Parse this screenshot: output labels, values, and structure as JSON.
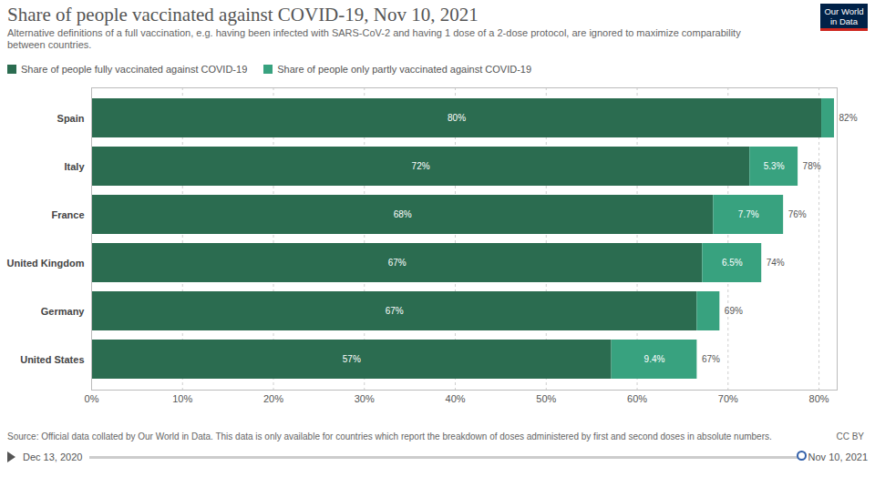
{
  "chart_data": {
    "type": "bar",
    "orientation": "horizontal",
    "stacked": true,
    "data_labels": true,
    "grid": true,
    "legend": "top-left",
    "title": "Share of people vaccinated against COVID-19, Nov 10, 2021",
    "subtitle": "Alternative definitions of a full vaccination, e.g. having been infected with SARS-CoV-2 and having 1 dose of a 2-dose protocol, are ignored to maximize comparability between countries.",
    "categories": [
      "Spain",
      "Italy",
      "France",
      "United Kingdom",
      "Germany",
      "United States"
    ],
    "series": [
      {
        "name": "Share of people fully vaccinated against COVID-19",
        "color": "#2b6c50",
        "values": [
          80.3,
          72.4,
          68.4,
          67.2,
          66.6,
          57.2
        ],
        "value_labels": [
          "80%",
          "72%",
          "68%",
          "67%",
          "67%",
          "57%"
        ]
      },
      {
        "name": "Share of people only partly vaccinated against COVID-19",
        "color": "#38a27f",
        "values": [
          1.4,
          5.3,
          7.7,
          6.5,
          2.5,
          9.4
        ],
        "value_labels": [
          null,
          "5.3%",
          "7.7%",
          "6.5%",
          null,
          "9.4%"
        ]
      }
    ],
    "totals": [
      81.7,
      77.7,
      76.1,
      73.7,
      69.1,
      66.6
    ],
    "total_labels": [
      "82%",
      "78%",
      "76%",
      "74%",
      "69%",
      "67%"
    ],
    "xlim": [
      0,
      82
    ],
    "xticks": [
      {
        "value": 0,
        "label": "0%"
      },
      {
        "value": 10,
        "label": "10%"
      },
      {
        "value": 20,
        "label": "20%"
      },
      {
        "value": 30,
        "label": "30%"
      },
      {
        "value": 40,
        "label": "40%"
      },
      {
        "value": 50,
        "label": "50%"
      },
      {
        "value": 60,
        "label": "60%"
      },
      {
        "value": 70,
        "label": "70%"
      },
      {
        "value": 80,
        "label": "80%"
      }
    ],
    "source": "Source: Official data collated by Our World in Data. This data is only available for countries which report the breakdown of doses administered by first and second doses in absolute numbers.",
    "license": "CC BY",
    "logo": "Our World in Data",
    "timeline": [
      "Dec 13, 2020",
      "Nov 10, 2021"
    ]
  }
}
